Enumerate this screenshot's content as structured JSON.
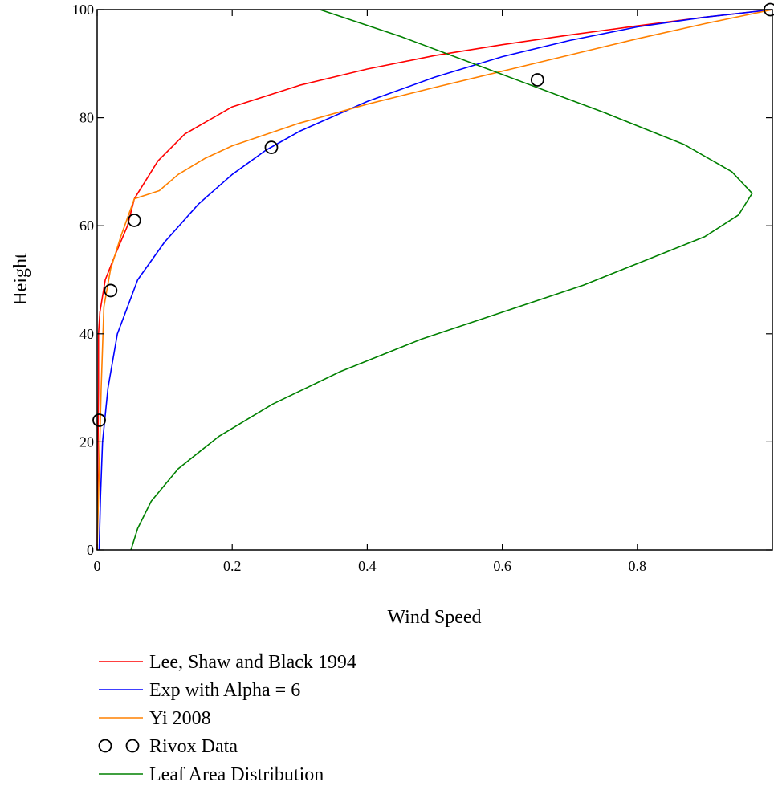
{
  "chart_data": {
    "type": "line",
    "xlabel": "Wind Speed",
    "ylabel": "Height",
    "xlim": [
      0,
      1
    ],
    "ylim": [
      0,
      100
    ],
    "x_ticks": [
      0,
      0.2,
      0.4,
      0.6,
      0.8
    ],
    "y_ticks": [
      0,
      20,
      40,
      60,
      80,
      100
    ],
    "legend_position": "bottom",
    "series": [
      {
        "name": "Lee, Shaw and Black 1994",
        "color": "#ff0000",
        "style": "line",
        "points": [
          [
            0,
            0
          ],
          [
            0.001,
            15
          ],
          [
            0.002,
            30
          ],
          [
            0.002,
            40
          ],
          [
            0.004,
            44
          ],
          [
            0.012,
            50
          ],
          [
            0.028,
            55
          ],
          [
            0.045,
            60
          ],
          [
            0.055,
            65
          ],
          [
            0.07,
            68
          ],
          [
            0.09,
            72
          ],
          [
            0.13,
            77
          ],
          [
            0.2,
            82
          ],
          [
            0.3,
            86
          ],
          [
            0.4,
            89
          ],
          [
            0.5,
            91.5
          ],
          [
            0.6,
            93.5
          ],
          [
            0.7,
            95.3
          ],
          [
            0.8,
            97
          ],
          [
            0.9,
            98.6
          ],
          [
            1,
            100
          ]
        ]
      },
      {
        "name": "Exp with Alpha = 6",
        "color": "#0000ff",
        "style": "line",
        "points": [
          [
            0.003,
            0
          ],
          [
            0.005,
            10
          ],
          [
            0.008,
            20
          ],
          [
            0.016,
            30
          ],
          [
            0.03,
            40
          ],
          [
            0.06,
            50
          ],
          [
            0.1,
            57
          ],
          [
            0.15,
            64
          ],
          [
            0.2,
            69.5
          ],
          [
            0.25,
            74
          ],
          [
            0.3,
            77.5
          ],
          [
            0.4,
            83
          ],
          [
            0.5,
            87.5
          ],
          [
            0.6,
            91.3
          ],
          [
            0.7,
            94.3
          ],
          [
            0.8,
            96.8
          ],
          [
            0.9,
            98.6
          ],
          [
            1,
            100
          ]
        ]
      },
      {
        "name": "Yi 2008",
        "color": "#ff8000",
        "style": "line",
        "points": [
          [
            0,
            0
          ],
          [
            0.003,
            15
          ],
          [
            0.006,
            30
          ],
          [
            0.01,
            45
          ],
          [
            0.02,
            52
          ],
          [
            0.035,
            58
          ],
          [
            0.055,
            65
          ],
          [
            0.092,
            66.5
          ],
          [
            0.12,
            69.5
          ],
          [
            0.16,
            72.5
          ],
          [
            0.2,
            74.8
          ],
          [
            0.3,
            79
          ],
          [
            0.4,
            82.5
          ],
          [
            0.5,
            85.6
          ],
          [
            0.6,
            88.6
          ],
          [
            0.7,
            91.6
          ],
          [
            0.8,
            94.6
          ],
          [
            0.9,
            97.4
          ],
          [
            1,
            100
          ]
        ]
      },
      {
        "name": "Rivox Data",
        "color": "#000000",
        "style": "markers",
        "marker": "circle",
        "points": [
          [
            0.003,
            24
          ],
          [
            0.02,
            48
          ],
          [
            0.055,
            61
          ],
          [
            0.258,
            74.5
          ],
          [
            0.652,
            87
          ],
          [
            0.997,
            100
          ]
        ]
      },
      {
        "name": "Leaf Area Distribution",
        "color": "#008000",
        "style": "line",
        "points": [
          [
            0.05,
            0
          ],
          [
            0.06,
            4
          ],
          [
            0.08,
            9
          ],
          [
            0.12,
            15
          ],
          [
            0.18,
            21
          ],
          [
            0.26,
            27
          ],
          [
            0.36,
            33
          ],
          [
            0.48,
            39
          ],
          [
            0.6,
            44
          ],
          [
            0.72,
            49
          ],
          [
            0.82,
            54
          ],
          [
            0.9,
            58
          ],
          [
            0.95,
            62
          ],
          [
            0.97,
            66
          ],
          [
            0.94,
            70
          ],
          [
            0.87,
            75
          ],
          [
            0.75,
            81
          ],
          [
            0.6,
            88
          ],
          [
            0.45,
            95
          ],
          [
            0.33,
            100
          ]
        ]
      }
    ]
  },
  "legend": [
    {
      "label": "Lee, Shaw and Black 1994",
      "symbol": "line",
      "color": "#ff0000"
    },
    {
      "label": "Exp with Alpha = 6",
      "symbol": "line",
      "color": "#0000ff"
    },
    {
      "label": "Yi 2008",
      "symbol": "line",
      "color": "#ff8000"
    },
    {
      "label": "Rivox Data",
      "symbol": "circles",
      "color": "#000000"
    },
    {
      "label": "Leaf Area Distribution",
      "symbol": "line",
      "color": "#008000"
    }
  ]
}
